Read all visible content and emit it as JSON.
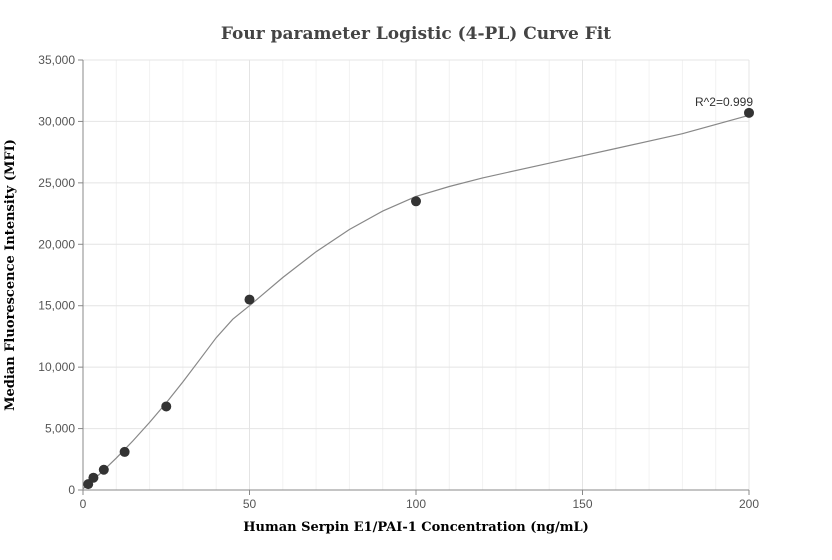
{
  "chart_data": {
    "type": "scatter",
    "title": "Four parameter Logistic (4-PL) Curve Fit",
    "xlabel": "Human Serpin E1/PAI-1 Concentration (ng/mL)",
    "ylabel": "Median Fluorescence Intensity (MFI)",
    "xlim": [
      0,
      200
    ],
    "ylim": [
      0,
      35000
    ],
    "x_ticks": [
      0,
      50,
      100,
      150,
      200
    ],
    "x_tick_labels": [
      "0",
      "50",
      "100",
      "150",
      "200"
    ],
    "y_ticks": [
      0,
      5000,
      10000,
      15000,
      20000,
      25000,
      30000,
      35000
    ],
    "y_tick_labels": [
      "0",
      "5,000",
      "10,000",
      "15,000",
      "20,000",
      "25,000",
      "30,000",
      "35,000"
    ],
    "grid": true,
    "series": [
      {
        "points": [
          {
            "x": 1.56,
            "y": 480
          },
          {
            "x": 3.13,
            "y": 1000
          },
          {
            "x": 6.25,
            "y": 1650
          },
          {
            "x": 12.5,
            "y": 3100
          },
          {
            "x": 25,
            "y": 6800
          },
          {
            "x": 50,
            "y": 15500
          },
          {
            "x": 100,
            "y": 23500
          },
          {
            "x": 200,
            "y": 30700
          }
        ],
        "color": "#333333"
      }
    ],
    "fit_curve": {
      "color": "#888888",
      "points": [
        {
          "x": 0,
          "y": 100
        },
        {
          "x": 5,
          "y": 1300
        },
        {
          "x": 10,
          "y": 2600
        },
        {
          "x": 15,
          "y": 4000
        },
        {
          "x": 20,
          "y": 5500
        },
        {
          "x": 25,
          "y": 7100
        },
        {
          "x": 30,
          "y": 8800
        },
        {
          "x": 35,
          "y": 10600
        },
        {
          "x": 40,
          "y": 12400
        },
        {
          "x": 45,
          "y": 13900
        },
        {
          "x": 50,
          "y": 15000
        },
        {
          "x": 60,
          "y": 17300
        },
        {
          "x": 70,
          "y": 19400
        },
        {
          "x": 80,
          "y": 21200
        },
        {
          "x": 90,
          "y": 22700
        },
        {
          "x": 100,
          "y": 23900
        },
        {
          "x": 110,
          "y": 24700
        },
        {
          "x": 120,
          "y": 25400
        },
        {
          "x": 140,
          "y": 26600
        },
        {
          "x": 160,
          "y": 27800
        },
        {
          "x": 180,
          "y": 29000
        },
        {
          "x": 200,
          "y": 30500
        }
      ]
    },
    "annotations": [
      {
        "text": "R^2=0.999",
        "x": 200,
        "y": 30700
      }
    ]
  }
}
